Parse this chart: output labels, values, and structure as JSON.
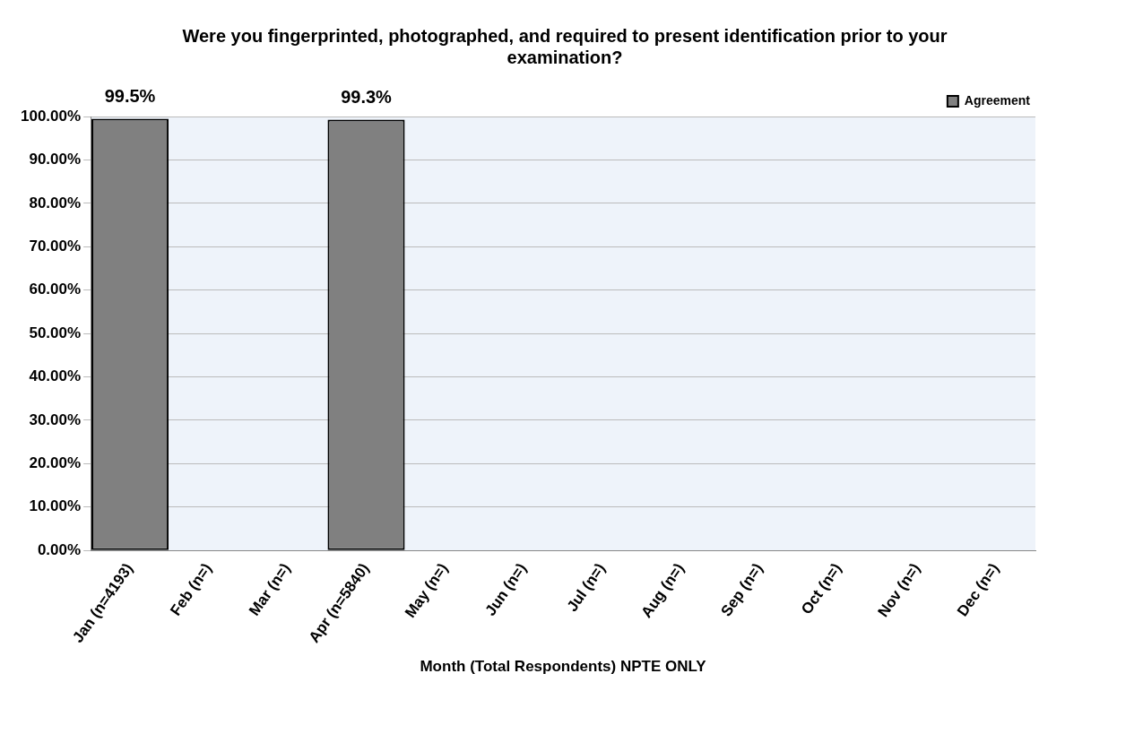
{
  "chart_data": {
    "type": "bar",
    "title": "Were you fingerprinted, photographed, and required to present identification prior to your examination?",
    "xlabel": "Month (Total Respondents) NPTE ONLY",
    "categories": [
      "Jan (n=4193)",
      "Feb (n=)",
      "Mar (n=)",
      "Apr (n=5840)",
      "May (n=)",
      "Jun (n=)",
      "Jul (n=)",
      "Aug (n=)",
      "Sep (n=)",
      "Oct (n=)",
      "Nov (n=)",
      "Dec (n=)"
    ],
    "series": [
      {
        "name": "Agreement",
        "color": "#808080",
        "values": [
          99.5,
          null,
          null,
          99.3,
          null,
          null,
          null,
          null,
          null,
          null,
          null,
          null
        ],
        "value_labels": [
          "99.5%",
          null,
          null,
          "99.3%",
          null,
          null,
          null,
          null,
          null,
          null,
          null,
          null
        ]
      }
    ],
    "ylim": [
      0,
      100
    ],
    "yticks": [
      {
        "value": 0,
        "label": "0.00%"
      },
      {
        "value": 10,
        "label": "10.00%"
      },
      {
        "value": 20,
        "label": "20.00%"
      },
      {
        "value": 30,
        "label": "30.00%"
      },
      {
        "value": 40,
        "label": "40.00%"
      },
      {
        "value": 50,
        "label": "50.00%"
      },
      {
        "value": 60,
        "label": "60.00%"
      },
      {
        "value": 70,
        "label": "70.00%"
      },
      {
        "value": 80,
        "label": "80.00%"
      },
      {
        "value": 90,
        "label": "90.00%"
      },
      {
        "value": 100,
        "label": "100.00%"
      }
    ],
    "grid": "y",
    "legend": "top right"
  }
}
